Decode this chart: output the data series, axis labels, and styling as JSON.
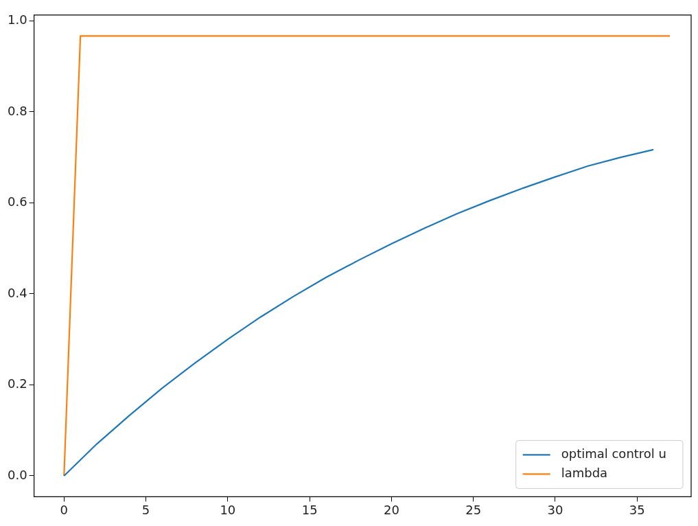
{
  "chart_data": {
    "type": "line",
    "xlim": [
      -1.83,
      38.3
    ],
    "ylim": [
      -0.046,
      1.013
    ],
    "xticks": [
      0,
      5,
      10,
      15,
      20,
      25,
      30,
      35
    ],
    "yticks": [
      {
        "value": 0,
        "label": "0.0"
      },
      {
        "value": 0.2,
        "label": "0.2"
      },
      {
        "value": 0.4,
        "label": "0.4"
      },
      {
        "value": 0.6,
        "label": "0.6"
      },
      {
        "value": 0.8,
        "label": "0.8"
      },
      {
        "value": 1,
        "label": "1.0"
      }
    ],
    "grid": false,
    "legend": "bottom right",
    "marker": "none",
    "line_style": "solid",
    "series": [
      {
        "name": "optimal control u",
        "color": "#1f77b4",
        "x": [
          0,
          2,
          4,
          6,
          8,
          10,
          12,
          14,
          16,
          18,
          20,
          22,
          24,
          26,
          28,
          30,
          32,
          34,
          36
        ],
        "values": [
          0,
          0.07,
          0.133,
          0.193,
          0.248,
          0.3,
          0.349,
          0.394,
          0.436,
          0.474,
          0.51,
          0.544,
          0.576,
          0.605,
          0.632,
          0.657,
          0.681,
          0.7,
          0.717
        ]
      },
      {
        "name": "lambda",
        "color": "#ff7f0e",
        "x": [
          0,
          1,
          37
        ],
        "values": [
          0,
          0.967,
          0.967
        ]
      }
    ]
  }
}
